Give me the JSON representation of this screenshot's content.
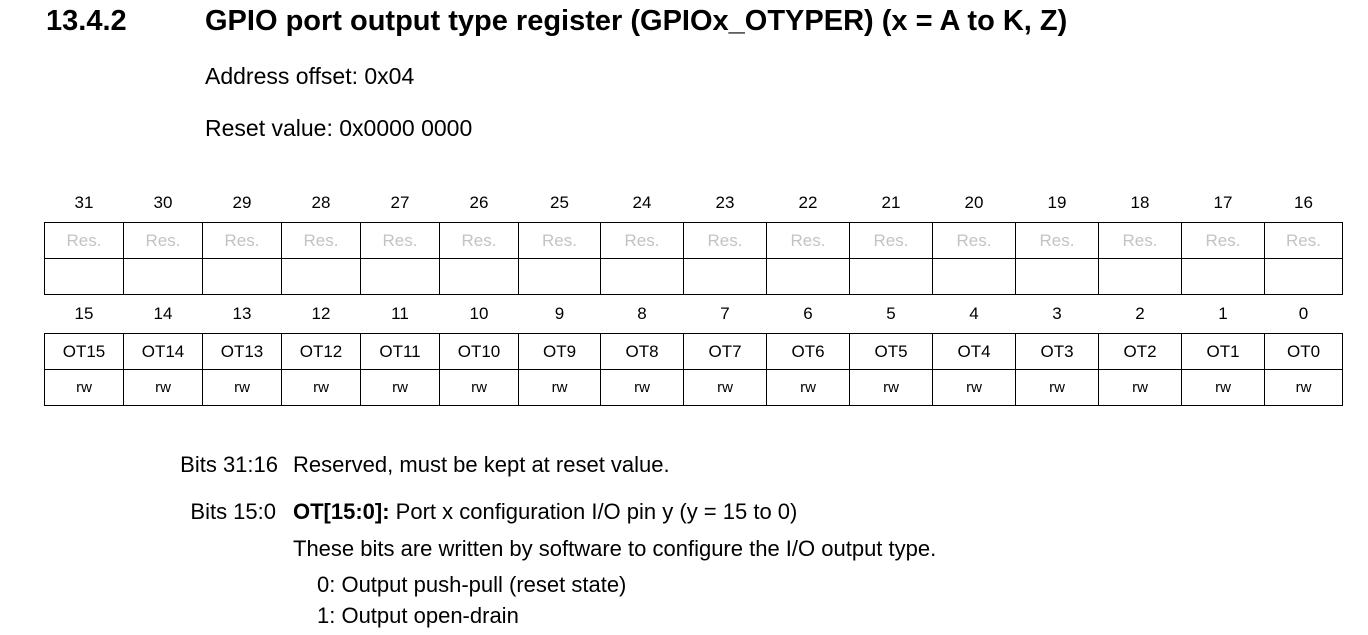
{
  "section": {
    "number": "13.4.2",
    "title": "GPIO port output type register (GPIOx_OTYPER) (x = A to K, Z)"
  },
  "address_offset": "Address offset: 0x04",
  "reset_value": "Reset value: 0x0000 0000",
  "register": {
    "upper_bits": [
      "31",
      "30",
      "29",
      "28",
      "27",
      "26",
      "25",
      "24",
      "23",
      "22",
      "21",
      "20",
      "19",
      "18",
      "17",
      "16"
    ],
    "upper_fields": [
      "Res.",
      "Res.",
      "Res.",
      "Res.",
      "Res.",
      "Res.",
      "Res.",
      "Res.",
      "Res.",
      "Res.",
      "Res.",
      "Res.",
      "Res.",
      "Res.",
      "Res.",
      "Res."
    ],
    "upper_access": [
      "",
      "",
      "",
      "",
      "",
      "",
      "",
      "",
      "",
      "",
      "",
      "",
      "",
      "",
      "",
      ""
    ],
    "lower_bits": [
      "15",
      "14",
      "13",
      "12",
      "11",
      "10",
      "9",
      "8",
      "7",
      "6",
      "5",
      "4",
      "3",
      "2",
      "1",
      "0"
    ],
    "lower_fields": [
      "OT15",
      "OT14",
      "OT13",
      "OT12",
      "OT11",
      "OT10",
      "OT9",
      "OT8",
      "OT7",
      "OT6",
      "OT5",
      "OT4",
      "OT3",
      "OT2",
      "OT1",
      "OT0"
    ],
    "lower_access": [
      "rw",
      "rw",
      "rw",
      "rw",
      "rw",
      "rw",
      "rw",
      "rw",
      "rw",
      "rw",
      "rw",
      "rw",
      "rw",
      "rw",
      "rw",
      "rw"
    ]
  },
  "bit_descriptions": [
    {
      "label": "Bits 31:16",
      "text": "Reserved, must be kept at reset value."
    },
    {
      "label": "Bits 15:0",
      "field": "OT[15:0]:",
      "summary": " Port x configuration I/O pin y (y = 15 to 0)",
      "detail": "These bits are written by software to configure the I/O output type.",
      "options": [
        "0: Output push-pull (reset state)",
        "1: Output open-drain"
      ]
    }
  ]
}
